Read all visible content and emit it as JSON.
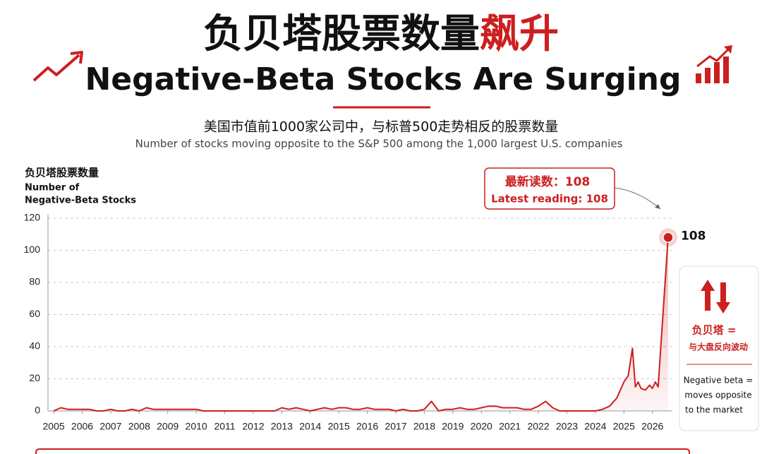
{
  "chart_data": {
    "type": "line",
    "title": "负贝塔股票数量",
    "title_highlight": "飙升",
    "title_en": "Negative-Beta Stocks Are Surging",
    "subtitle": "美国市值前1000家公司中，与标普500走势相反的股票数量",
    "subtitle_en": "Number of stocks moving opposite to the S&P 500 among the 1,000 largest U.S. companies",
    "y_label": "负贝塔股票数量",
    "y_label_en": [
      "Number of",
      "Negative-Beta Stocks"
    ],
    "annotation": "最新读数：108",
    "annotation_en": "Latest reading: 108",
    "value_label_last": "108",
    "side_note": [
      "负贝塔 =",
      "与大盘反向波动"
    ],
    "side_note_en": [
      "Negative beta =",
      "moves opposite",
      "to the market"
    ],
    "color": "#cc1f1f",
    "x": [
      2005,
      2005.25,
      2005.5,
      2005.75,
      2006,
      2006.25,
      2006.5,
      2006.75,
      2007,
      2007.25,
      2007.5,
      2007.75,
      2008,
      2008.25,
      2008.5,
      2008.75,
      2009,
      2009.25,
      2009.5,
      2009.75,
      2010,
      2010.25,
      2010.5,
      2010.75,
      2011,
      2011.25,
      2011.5,
      2011.75,
      2012,
      2012.25,
      2012.5,
      2012.75,
      2013,
      2013.25,
      2013.5,
      2013.75,
      2014,
      2014.25,
      2014.5,
      2014.75,
      2015,
      2015.25,
      2015.5,
      2015.75,
      2016,
      2016.25,
      2016.5,
      2016.75,
      2017,
      2017.25,
      2017.5,
      2017.75,
      2018,
      2018.25,
      2018.5,
      2018.75,
      2019,
      2019.25,
      2019.5,
      2019.75,
      2020,
      2020.25,
      2020.5,
      2020.75,
      2021,
      2021.25,
      2021.5,
      2021.75,
      2022,
      2022.25,
      2022.5,
      2022.75,
      2023,
      2023.25,
      2023.5,
      2023.75,
      2024,
      2024.25,
      2024.5,
      2024.75,
      2025,
      2025.15,
      2025.3,
      2025.4,
      2025.5,
      2025.6,
      2025.75,
      2025.9,
      2026,
      2026.1,
      2026.2,
      2026.55
    ],
    "values": [
      0,
      2,
      1,
      1,
      1,
      1,
      0,
      0,
      1,
      0,
      0,
      1,
      0,
      2,
      1,
      1,
      1,
      1,
      1,
      1,
      1,
      0,
      0,
      0,
      0,
      0,
      0,
      0,
      0,
      0,
      0,
      0,
      2,
      1,
      2,
      1,
      0,
      1,
      2,
      1,
      2,
      2,
      1,
      1,
      2,
      1,
      1,
      1,
      0,
      1,
      0,
      0,
      1,
      6,
      0,
      1,
      1,
      2,
      1,
      1,
      2,
      3,
      3,
      2,
      2,
      2,
      1,
      1,
      3,
      6,
      2,
      0,
      0,
      0,
      0,
      0,
      0,
      1,
      3,
      8,
      18,
      22,
      39,
      15,
      18,
      14,
      13,
      16,
      14,
      18,
      15,
      108
    ],
    "xlim": [
      2004.8,
      2026.7
    ],
    "xticks": [
      2005,
      2006,
      2007,
      2008,
      2009,
      2010,
      2011,
      2012,
      2013,
      2014,
      2015,
      2016,
      2017,
      2018,
      2019,
      2020,
      2021,
      2022,
      2023,
      2024,
      2025,
      2026
    ],
    "ylim": [
      0,
      120
    ],
    "yticks": [
      0,
      20,
      40,
      60,
      80,
      100,
      120
    ],
    "grid": true
  }
}
